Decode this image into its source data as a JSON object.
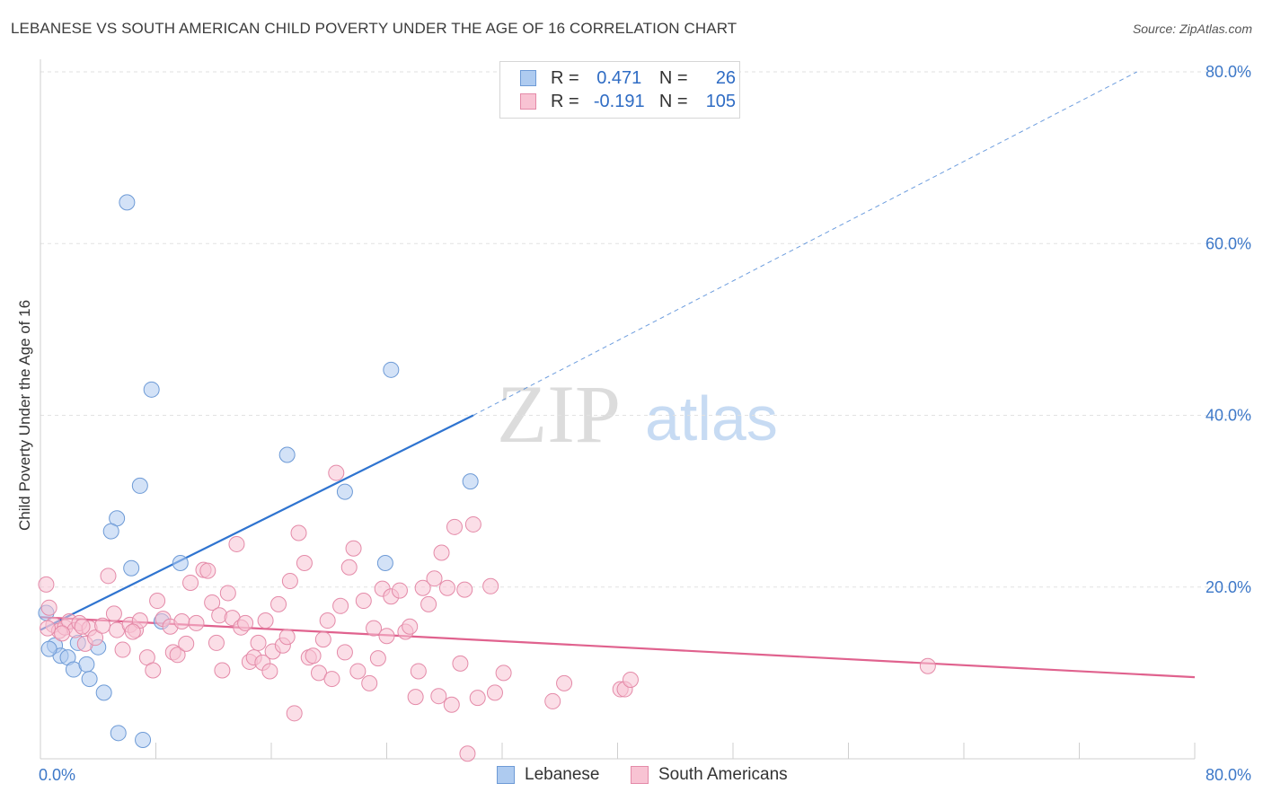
{
  "header": {
    "title": "LEBANESE VS SOUTH AMERICAN CHILD POVERTY UNDER THE AGE OF 16 CORRELATION CHART",
    "source": "Source: ZipAtlas.com"
  },
  "watermark": {
    "zip": "ZIP",
    "atlas": "atlas"
  },
  "stats": [
    {
      "r_label": "R =",
      "r_value": "0.471",
      "n_label": "N =",
      "n_value": "26",
      "color": "#aecbf0",
      "stroke": "#6d9ad6"
    },
    {
      "r_label": "R =",
      "r_value": "-0.191",
      "n_label": "N =",
      "n_value": "105",
      "color": "#f8c3d3",
      "stroke": "#e48aa8"
    }
  ],
  "legend": [
    {
      "label": "Lebanese",
      "color": "#aecbf0",
      "stroke": "#6d9ad6"
    },
    {
      "label": "South Americans",
      "color": "#f8c3d3",
      "stroke": "#e48aa8"
    }
  ],
  "chart_data": {
    "type": "scatter",
    "title": "LEBANESE VS SOUTH AMERICAN CHILD POVERTY UNDER THE AGE OF 16 CORRELATION CHART",
    "xlabel": "",
    "ylabel": "Child Poverty Under the Age of 16",
    "xlim": [
      0,
      80
    ],
    "ylim": [
      0,
      80
    ],
    "x_tick_labels": [
      "0.0%",
      "80.0%"
    ],
    "y_tick_labels": [
      "20.0%",
      "40.0%",
      "60.0%",
      "80.0%"
    ],
    "y_ticks": [
      20,
      40,
      60,
      80
    ],
    "grid": "horizontal dashed",
    "legend_position": "bottom-center",
    "series": [
      {
        "name": "Lebanese",
        "color": "#6d9ad6",
        "fill": "#aecbf0",
        "trend_color": "#2f74d0",
        "trend": {
          "x0": 0,
          "y0": 15.0,
          "x1": 30,
          "y1": 40.0,
          "dashed_to_x": 76,
          "dashed_to_y": 80.0
        },
        "points": [
          [
            6.0,
            64.8
          ],
          [
            7.7,
            43.0
          ],
          [
            6.9,
            31.8
          ],
          [
            5.3,
            28.0
          ],
          [
            4.9,
            26.5
          ],
          [
            6.3,
            22.2
          ],
          [
            9.7,
            22.8
          ],
          [
            8.4,
            16.0
          ],
          [
            0.4,
            17.0
          ],
          [
            1.0,
            13.2
          ],
          [
            1.4,
            12.0
          ],
          [
            1.9,
            11.8
          ],
          [
            0.6,
            12.8
          ],
          [
            2.3,
            10.4
          ],
          [
            3.2,
            11.0
          ],
          [
            3.4,
            9.3
          ],
          [
            4.0,
            13.0
          ],
          [
            4.4,
            7.7
          ],
          [
            5.4,
            3.0
          ],
          [
            7.1,
            2.2
          ],
          [
            17.1,
            35.4
          ],
          [
            21.1,
            31.1
          ],
          [
            24.3,
            45.3
          ],
          [
            23.9,
            22.8
          ],
          [
            29.8,
            32.3
          ],
          [
            2.6,
            13.5
          ]
        ]
      },
      {
        "name": "South Americans",
        "color": "#e48aa8",
        "fill": "#f8c3d3",
        "trend_color": "#e0628e",
        "trend": {
          "x0": 0,
          "y0": 16.5,
          "x1": 80,
          "y1": 9.5
        },
        "points": [
          [
            0.4,
            20.3
          ],
          [
            0.6,
            17.6
          ],
          [
            0.9,
            15.6
          ],
          [
            1.3,
            14.9
          ],
          [
            1.7,
            15.3
          ],
          [
            2.0,
            16.0
          ],
          [
            2.4,
            15.0
          ],
          [
            2.7,
            15.8
          ],
          [
            3.1,
            13.4
          ],
          [
            3.4,
            15.2
          ],
          [
            3.8,
            14.1
          ],
          [
            4.3,
            15.5
          ],
          [
            4.7,
            21.3
          ],
          [
            5.1,
            16.9
          ],
          [
            5.3,
            15.0
          ],
          [
            5.7,
            12.7
          ],
          [
            6.2,
            15.6
          ],
          [
            6.6,
            15.0
          ],
          [
            6.9,
            16.1
          ],
          [
            7.4,
            11.8
          ],
          [
            7.8,
            10.3
          ],
          [
            8.1,
            18.4
          ],
          [
            8.5,
            16.3
          ],
          [
            9.0,
            15.4
          ],
          [
            9.2,
            12.4
          ],
          [
            9.5,
            12.1
          ],
          [
            9.8,
            16.0
          ],
          [
            10.1,
            13.4
          ],
          [
            10.4,
            20.5
          ],
          [
            10.8,
            15.8
          ],
          [
            11.3,
            22.0
          ],
          [
            11.6,
            21.9
          ],
          [
            11.9,
            18.2
          ],
          [
            12.2,
            13.5
          ],
          [
            12.4,
            16.7
          ],
          [
            12.6,
            10.3
          ],
          [
            13.0,
            19.3
          ],
          [
            13.3,
            16.4
          ],
          [
            13.6,
            25.0
          ],
          [
            13.9,
            15.3
          ],
          [
            14.2,
            15.8
          ],
          [
            14.5,
            11.3
          ],
          [
            14.8,
            11.8
          ],
          [
            15.1,
            13.5
          ],
          [
            15.4,
            11.2
          ],
          [
            15.6,
            16.1
          ],
          [
            15.9,
            10.2
          ],
          [
            16.1,
            12.5
          ],
          [
            16.5,
            18.0
          ],
          [
            16.8,
            13.2
          ],
          [
            17.1,
            14.2
          ],
          [
            17.3,
            20.7
          ],
          [
            17.6,
            5.3
          ],
          [
            17.9,
            26.3
          ],
          [
            18.3,
            22.8
          ],
          [
            18.6,
            11.8
          ],
          [
            18.9,
            12.0
          ],
          [
            19.3,
            10.0
          ],
          [
            19.6,
            13.9
          ],
          [
            19.9,
            16.1
          ],
          [
            20.2,
            9.3
          ],
          [
            20.5,
            33.3
          ],
          [
            20.8,
            17.8
          ],
          [
            21.1,
            12.4
          ],
          [
            21.4,
            22.3
          ],
          [
            21.7,
            24.5
          ],
          [
            22.0,
            10.2
          ],
          [
            22.4,
            18.4
          ],
          [
            22.8,
            8.8
          ],
          [
            23.1,
            15.2
          ],
          [
            23.4,
            11.7
          ],
          [
            23.7,
            19.8
          ],
          [
            24.0,
            14.3
          ],
          [
            24.3,
            18.9
          ],
          [
            24.9,
            19.6
          ],
          [
            25.3,
            14.8
          ],
          [
            25.6,
            15.4
          ],
          [
            26.0,
            7.2
          ],
          [
            26.2,
            10.2
          ],
          [
            26.5,
            19.9
          ],
          [
            26.9,
            18.0
          ],
          [
            27.3,
            21.0
          ],
          [
            27.6,
            7.3
          ],
          [
            27.8,
            24.0
          ],
          [
            28.2,
            19.9
          ],
          [
            28.5,
            6.3
          ],
          [
            28.7,
            27.0
          ],
          [
            29.1,
            11.1
          ],
          [
            29.4,
            19.7
          ],
          [
            29.6,
            0.6
          ],
          [
            30.0,
            27.3
          ],
          [
            30.3,
            7.1
          ],
          [
            31.2,
            20.1
          ],
          [
            31.5,
            7.7
          ],
          [
            32.1,
            10.0
          ],
          [
            35.5,
            6.7
          ],
          [
            36.3,
            8.8
          ],
          [
            40.2,
            8.1
          ],
          [
            40.5,
            8.1
          ],
          [
            40.9,
            9.2
          ],
          [
            61.5,
            10.8
          ],
          [
            0.5,
            15.2
          ],
          [
            1.5,
            14.6
          ],
          [
            2.9,
            15.4
          ],
          [
            6.4,
            14.8
          ]
        ]
      }
    ]
  }
}
